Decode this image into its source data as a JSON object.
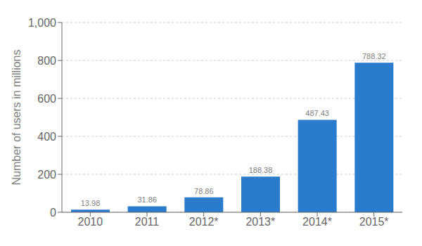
{
  "chart_data": {
    "type": "bar",
    "categories": [
      "2010",
      "2011",
      "2012*",
      "2013*",
      "2014*",
      "2015*"
    ],
    "values": [
      13.98,
      31.86,
      78.86,
      188.38,
      487.43,
      788.32
    ],
    "color": "#2b7bcc",
    "ylabel": "Number of users in millions",
    "ylim": [
      0,
      1000
    ],
    "yticks": [
      0,
      200,
      400,
      600,
      800,
      {
        "value": 1000,
        "label": "1,000"
      }
    ],
    "grid": true,
    "data_labels": true
  }
}
